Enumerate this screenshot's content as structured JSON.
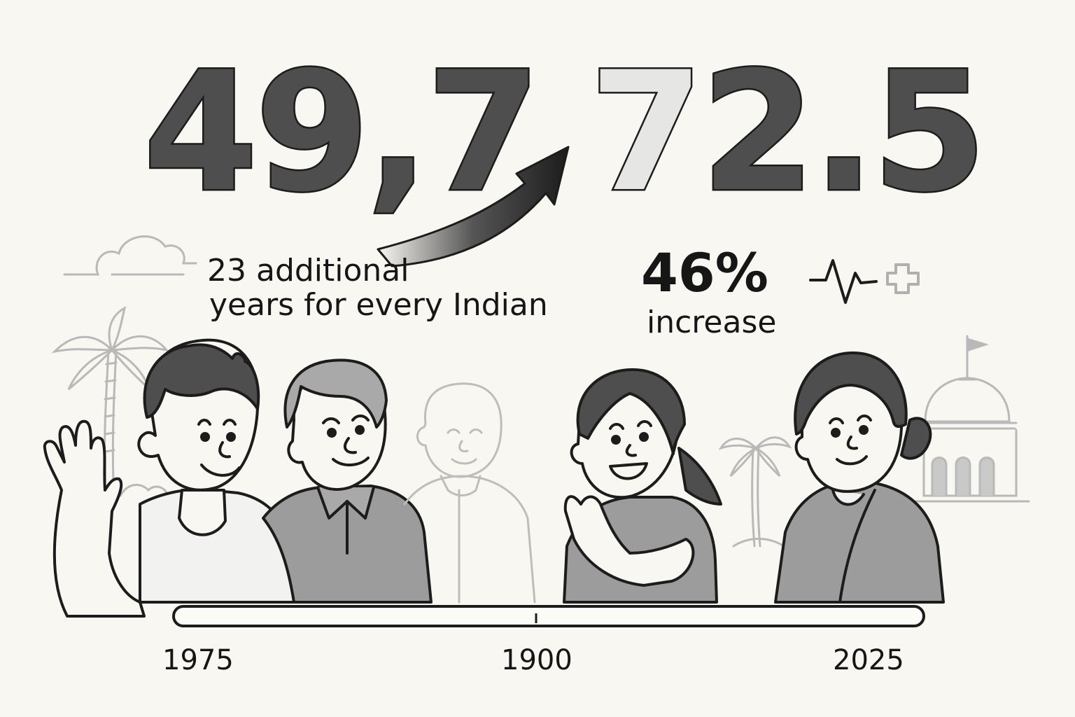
{
  "headline": {
    "start_value": "49,7",
    "end_value_first_digit": "7",
    "end_value_rest": "2.5"
  },
  "caption": {
    "line1": "23 additional",
    "line2": "years for every Indian"
  },
  "stat": {
    "percent": "46%",
    "label": "increase"
  },
  "timeline": {
    "labels": [
      "1975",
      "1900",
      "2025"
    ]
  },
  "colors": {
    "background": "#f8f7f2",
    "number_fill": "#4e4e4e",
    "ink": "#1c1c1c",
    "light_gray": "#b9b9b9",
    "shirt_gray": "#9c9c9c"
  },
  "icons": [
    "arrow-up-right-icon",
    "heartbeat-icon",
    "medical-cross-icon",
    "cloud-icon",
    "palm-tree-icon",
    "temple-dome-icon"
  ]
}
